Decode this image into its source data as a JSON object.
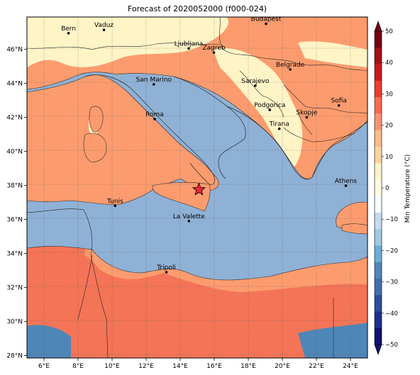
{
  "title": "Forecast of 2020052000 (f000-024)",
  "colorbar": {
    "label": "Min Temperature (°C)",
    "ticks": [
      "50",
      "40",
      "30",
      "20",
      "10",
      "0",
      "−10",
      "−20",
      "−30",
      "−40",
      "−50"
    ],
    "colors": [
      "#740014",
      "#a50f15",
      "#cb181d",
      "#ef3b2c",
      "#fb6a4a",
      "#fc9272",
      "#fcbb89",
      "#fdd49e",
      "#fff5c8",
      "#fffbe0",
      "#f7fcff",
      "#c6dbef",
      "#9ecae1",
      "#6baed6",
      "#4f86b8",
      "#3f6fb0",
      "#2b4f9a",
      "#1e2f8f",
      "#12126e"
    ]
  },
  "colors": {
    "sea": "#8fb1d6",
    "land_mild": "#fc9c6e",
    "land_cool": "#fff4c6",
    "land_warm": "#f47457",
    "star": "#e8283a"
  },
  "x_ticks": [
    "6°E",
    "8°E",
    "10°E",
    "12°E",
    "14°E",
    "16°E",
    "18°E",
    "20°E",
    "22°E",
    "24°E"
  ],
  "y_ticks": [
    "46°N",
    "44°N",
    "42°N",
    "40°N",
    "38°N",
    "36°N",
    "34°N",
    "32°N",
    "30°N",
    "28°N"
  ],
  "cities": [
    {
      "name": "Bern",
      "lon": 7.44,
      "lat": 46.95
    },
    {
      "name": "Vaduz",
      "lon": 9.52,
      "lat": 47.14
    },
    {
      "name": "Budapest",
      "lon": 19.04,
      "lat": 47.5
    },
    {
      "name": "Ljubljana",
      "lon": 14.5,
      "lat": 46.05
    },
    {
      "name": "Zagreb",
      "lon": 15.98,
      "lat": 45.81
    },
    {
      "name": "Belgrade",
      "lon": 20.46,
      "lat": 44.82
    },
    {
      "name": "San Marino",
      "lon": 12.45,
      "lat": 43.94
    },
    {
      "name": "Sarajevo",
      "lon": 18.41,
      "lat": 43.86
    },
    {
      "name": "Sofia",
      "lon": 23.32,
      "lat": 42.7
    },
    {
      "name": "Podgorica",
      "lon": 19.26,
      "lat": 42.44
    },
    {
      "name": "Skopje",
      "lon": 21.43,
      "lat": 42.0
    },
    {
      "name": "Roma",
      "lon": 12.5,
      "lat": 41.9
    },
    {
      "name": "Tirana",
      "lon": 19.82,
      "lat": 41.33
    },
    {
      "name": "Athens",
      "lon": 23.73,
      "lat": 37.98
    },
    {
      "name": "Tunis",
      "lon": 10.18,
      "lat": 36.8
    },
    {
      "name": "La Valette",
      "lon": 14.51,
      "lat": 35.9
    },
    {
      "name": "Tripoli",
      "lon": 13.19,
      "lat": 32.89
    }
  ],
  "marker": {
    "name": "star",
    "lon": 15.1,
    "lat": 37.75
  }
}
